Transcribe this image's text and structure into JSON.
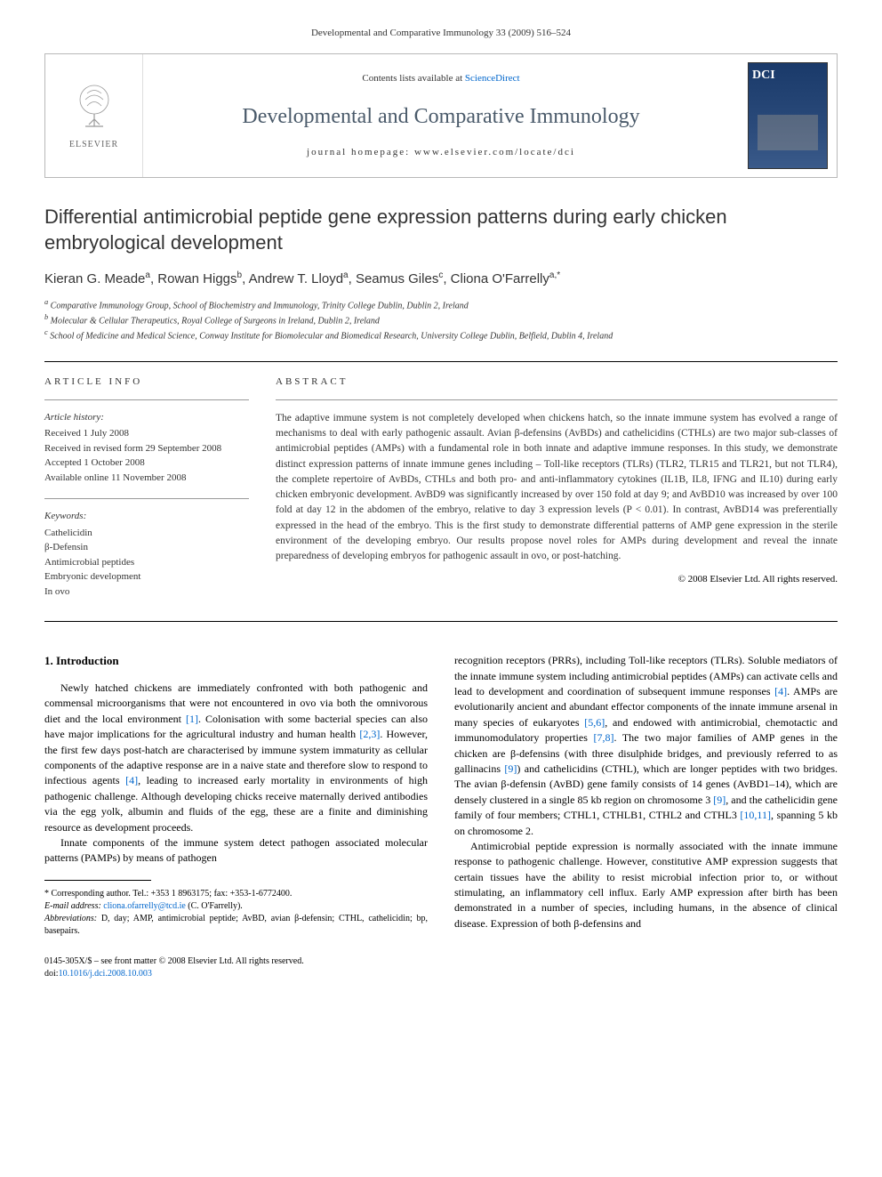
{
  "running_header": "Developmental and Comparative Immunology 33 (2009) 516–524",
  "banner": {
    "publisher_label": "ELSEVIER",
    "contents_prefix": "Contents lists available at ",
    "contents_link": "ScienceDirect",
    "journal_name": "Developmental and Comparative Immunology",
    "homepage_prefix": "journal homepage: ",
    "homepage_url": "www.elsevier.com/locate/dci"
  },
  "article": {
    "title": "Differential antimicrobial peptide gene expression patterns during early chicken embryological development",
    "authors_html": "Kieran G. Meade<sup>a</sup>, Rowan Higgs<sup>b</sup>, Andrew T. Lloyd<sup>a</sup>, Seamus Giles<sup>c</sup>, Cliona O'Farrelly<sup>a,*</sup>",
    "affiliations": [
      "a Comparative Immunology Group, School of Biochemistry and Immunology, Trinity College Dublin, Dublin 2, Ireland",
      "b Molecular & Cellular Therapeutics, Royal College of Surgeons in Ireland, Dublin 2, Ireland",
      "c School of Medicine and Medical Science, Conway Institute for Biomolecular and Biomedical Research, University College Dublin, Belfield, Dublin 4, Ireland"
    ]
  },
  "info": {
    "heading": "ARTICLE INFO",
    "history_label": "Article history:",
    "history": [
      "Received 1 July 2008",
      "Received in revised form 29 September 2008",
      "Accepted 1 October 2008",
      "Available online 11 November 2008"
    ],
    "keywords_label": "Keywords:",
    "keywords": [
      "Cathelicidin",
      "β-Defensin",
      "Antimicrobial peptides",
      "Embryonic development",
      "In ovo"
    ]
  },
  "abstract": {
    "heading": "ABSTRACT",
    "text": "The adaptive immune system is not completely developed when chickens hatch, so the innate immune system has evolved a range of mechanisms to deal with early pathogenic assault. Avian β-defensins (AvBDs) and cathelicidins (CTHLs) are two major sub-classes of antimicrobial peptides (AMPs) with a fundamental role in both innate and adaptive immune responses. In this study, we demonstrate distinct expression patterns of innate immune genes including – Toll-like receptors (TLRs) (TLR2, TLR15 and TLR21, but not TLR4), the complete repertoire of AvBDs, CTHLs and both pro- and anti-inflammatory cytokines (IL1B, IL8, IFNG and IL10) during early chicken embryonic development. AvBD9 was significantly increased by over 150 fold at day 9; and AvBD10 was increased by over 100 fold at day 12 in the abdomen of the embryo, relative to day 3 expression levels (P < 0.01). In contrast, AvBD14 was preferentially expressed in the head of the embryo. This is the first study to demonstrate differential patterns of AMP gene expression in the sterile environment of the developing embryo. Our results propose novel roles for AMPs during development and reveal the innate preparedness of developing embryos for pathogenic assault in ovo, or post-hatching.",
    "copyright": "© 2008 Elsevier Ltd. All rights reserved."
  },
  "body": {
    "section_heading": "1. Introduction",
    "col1_p1": "Newly hatched chickens are immediately confronted with both pathogenic and commensal microorganisms that were not encountered in ovo via both the omnivorous diet and the local environment [1]. Colonisation with some bacterial species can also have major implications for the agricultural industry and human health [2,3]. However, the first few days post-hatch are characterised by immune system immaturity as cellular components of the adaptive response are in a naive state and therefore slow to respond to infectious agents [4], leading to increased early mortality in environments of high pathogenic challenge. Although developing chicks receive maternally derived antibodies via the egg yolk, albumin and fluids of the egg, these are a finite and diminishing resource as development proceeds.",
    "col1_p2": "Innate components of the immune system detect pathogen associated molecular patterns (PAMPs) by means of pathogen",
    "col2_p1": "recognition receptors (PRRs), including Toll-like receptors (TLRs). Soluble mediators of the innate immune system including antimicrobial peptides (AMPs) can activate cells and lead to development and coordination of subsequent immune responses [4]. AMPs are evolutionarily ancient and abundant effector components of the innate immune arsenal in many species of eukaryotes [5,6], and endowed with antimicrobial, chemotactic and immunomodulatory properties [7,8]. The two major families of AMP genes in the chicken are β-defensins (with three disulphide bridges, and previously referred to as gallinacins [9]) and cathelicidins (CTHL), which are longer peptides with two bridges. The avian β-defensin (AvBD) gene family consists of 14 genes (AvBD1–14), which are densely clustered in a single 85 kb region on chromosome 3 [9], and the cathelicidin gene family of four members; CTHL1, CTHLB1, CTHL2 and CTHL3 [10,11], spanning 5 kb on chromosome 2.",
    "col2_p2": "Antimicrobial peptide expression is normally associated with the innate immune response to pathogenic challenge. However, constitutive AMP expression suggests that certain tissues have the ability to resist microbial infection prior to, or without stimulating, an inflammatory cell influx. Early AMP expression after birth has been demonstrated in a number of species, including humans, in the absence of clinical disease. Expression of both β-defensins and"
  },
  "footnotes": {
    "corresponding": "* Corresponding author. Tel.: +353 1 8963175; fax: +353-1-6772400.",
    "email_label": "E-mail address: ",
    "email": "cliona.ofarrelly@tcd.ie",
    "email_suffix": " (C. O'Farrelly).",
    "abbrev_label": "Abbreviations: ",
    "abbrev_text": "D, day; AMP, antimicrobial peptide; AvBD, avian β-defensin; CTHL, cathelicidin; bp, basepairs."
  },
  "footer": {
    "issn_line": "0145-305X/$ – see front matter © 2008 Elsevier Ltd. All rights reserved.",
    "doi_label": "doi:",
    "doi": "10.1016/j.dci.2008.10.003"
  },
  "colors": {
    "link": "#0066cc",
    "text": "#333333",
    "banner_border": "#b8b8b8",
    "journal_name": "#4a5a6a"
  }
}
